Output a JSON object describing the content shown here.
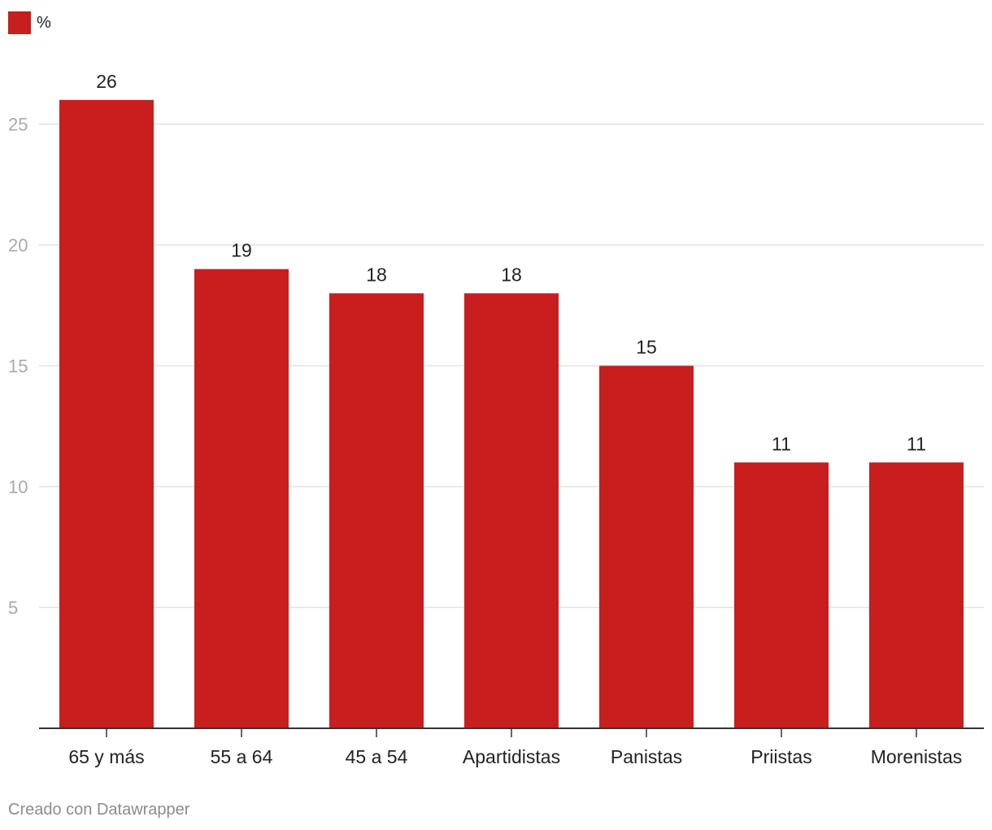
{
  "legend": {
    "label": "%"
  },
  "credit": "Creado con Datawrapper",
  "colors": {
    "bar": "#c81e1e",
    "grid": "#e2e2e2",
    "axis": "#333333"
  },
  "chart_data": {
    "type": "bar",
    "title": "",
    "xlabel": "",
    "ylabel": "",
    "categories": [
      "65 y más",
      "55 a 64",
      "45 a 54",
      "Apartidistas",
      "Panistas",
      "Priistas",
      "Morenistas"
    ],
    "series": [
      {
        "name": "%",
        "values": [
          26,
          19,
          18,
          18,
          15,
          11,
          11
        ]
      }
    ],
    "ylim": [
      0,
      28
    ],
    "yticks": [
      5,
      10,
      15,
      20,
      25
    ],
    "grid": true,
    "legend_position": "top-left"
  }
}
